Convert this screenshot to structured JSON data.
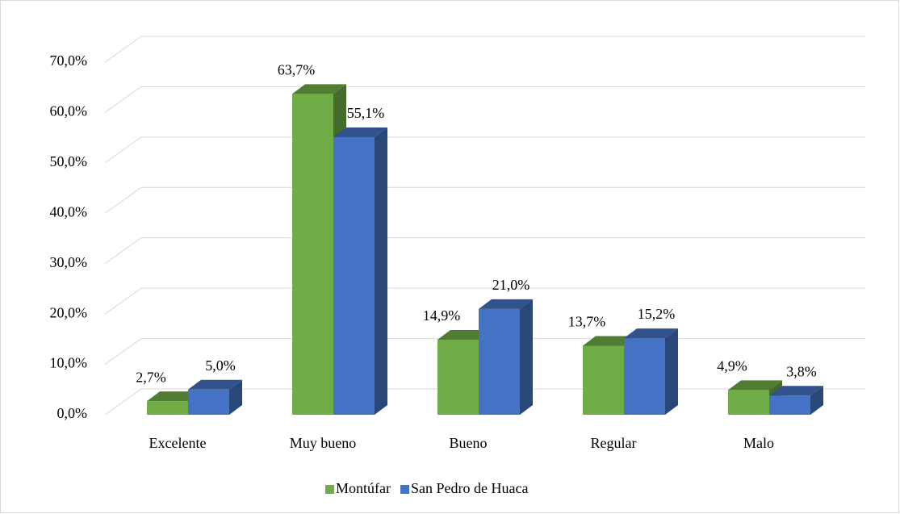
{
  "chart_data": {
    "type": "bar3d",
    "categories": [
      "Excelente",
      "Muy bueno",
      "Bueno",
      "Regular",
      "Malo"
    ],
    "series": [
      {
        "name": "Montúfar",
        "color": "#70ad47",
        "values": [
          2.7,
          63.7,
          14.9,
          13.7,
          4.9
        ],
        "value_labels": [
          "2,7%",
          "63,7%",
          "14,9%",
          "13,7%",
          "4,9%"
        ]
      },
      {
        "name": "San Pedro de Huaca",
        "color": "#4472c4",
        "values": [
          5.0,
          55.1,
          21.0,
          15.2,
          3.8
        ],
        "value_labels": [
          "5,0%",
          "55,1%",
          "21,0%",
          "15,2%",
          "3,8%"
        ]
      }
    ],
    "ylim": [
      0,
      70
    ],
    "yticks": [
      {
        "value": 0,
        "label": "0,0%"
      },
      {
        "value": 10,
        "label": "10,0%"
      },
      {
        "value": 20,
        "label": "20,0%"
      },
      {
        "value": 30,
        "label": "30,0%"
      },
      {
        "value": 40,
        "label": "40,0%"
      },
      {
        "value": 50,
        "label": "50,0%"
      },
      {
        "value": 60,
        "label": "60,0%"
      },
      {
        "value": 70,
        "label": "70,0%"
      }
    ],
    "grid": true,
    "legend": "bottom"
  }
}
